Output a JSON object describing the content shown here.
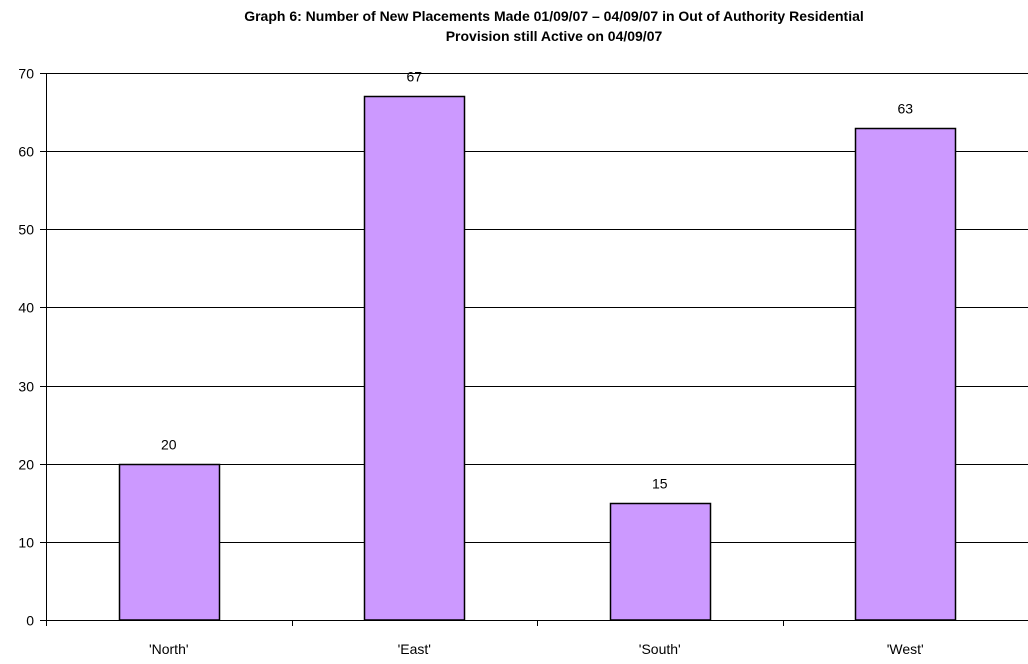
{
  "chart_data": {
    "type": "bar",
    "title_lines": [
      "Graph 6:  Number of New Placements Made 01/09/07 – 04/09/07 in Out of Authority Residential",
      "Provision still Active on 04/09/07"
    ],
    "categories": [
      "'North'",
      "'East'",
      "'South'",
      "'West'"
    ],
    "values": [
      20,
      67,
      15,
      63
    ],
    "data_labels": [
      "20",
      "67",
      "15",
      "63"
    ],
    "xlabel": "",
    "ylabel": "",
    "ylim": [
      0,
      70
    ],
    "yticks": [
      0,
      10,
      20,
      30,
      40,
      50,
      60,
      70
    ],
    "grid": true,
    "legend": "none",
    "colors": {
      "bar_fill": "#CC99FF",
      "bar_stroke": "#000000",
      "gridline": "#000000"
    }
  }
}
